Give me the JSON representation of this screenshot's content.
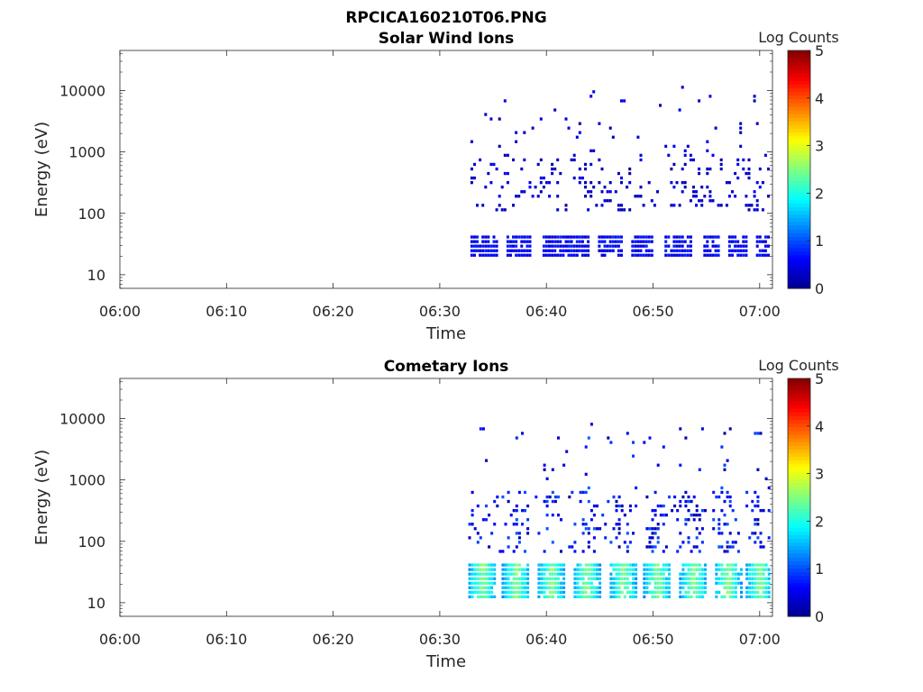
{
  "figure_title": "RPCICA160210T06.PNG",
  "colormap": [
    "#00008f",
    "#0000ff",
    "#0080ff",
    "#00ffff",
    "#80ff80",
    "#ffff00",
    "#ff8000",
    "#ff0000",
    "#800000"
  ],
  "chart_data": [
    {
      "type": "heatmap",
      "title": "Solar Wind Ions",
      "xlabel": "Time",
      "ylabel": "Energy (eV)",
      "x_tick_labels": [
        "06:00",
        "06:10",
        "06:20",
        "06:30",
        "06:40",
        "06:50",
        "07:00"
      ],
      "y_tick_labels": [
        "10",
        "100",
        "1000",
        "10000"
      ],
      "xlim_minutes": [
        0,
        61.2
      ],
      "ylim_eV": [
        6,
        45000
      ],
      "y_scale": "log",
      "colorbar": {
        "label": "Log Counts",
        "ticks": [
          "0",
          "1",
          "2",
          "3",
          "4",
          "5"
        ],
        "range": [
          0,
          5
        ]
      },
      "data_start_minute": 33,
      "data_end_minute": 61,
      "dominant_band_eV": [
        18,
        45
      ],
      "dominant_band_log_counts": 0.4,
      "scattered_energy_range_eV": [
        100,
        12000
      ],
      "gaps_minutes": [
        35.8,
        39.1,
        44.5,
        47.5,
        50.6,
        54.2,
        56.6,
        59.2
      ]
    },
    {
      "type": "heatmap",
      "title": "Cometary Ions",
      "xlabel": "Time",
      "ylabel": "Energy (eV)",
      "x_tick_labels": [
        "06:00",
        "06:10",
        "06:20",
        "06:30",
        "06:40",
        "06:50",
        "07:00"
      ],
      "y_tick_labels": [
        "10",
        "100",
        "1000",
        "10000"
      ],
      "xlim_minutes": [
        0,
        61.2
      ],
      "ylim_eV": [
        6,
        45000
      ],
      "y_scale": "log",
      "colorbar": {
        "label": "Log Counts",
        "ticks": [
          "0",
          "1",
          "2",
          "3",
          "4",
          "5"
        ],
        "range": [
          0,
          5
        ]
      },
      "data_start_minute": 32.8,
      "data_end_minute": 61,
      "dominant_band_eV": [
        12,
        45
      ],
      "dominant_band_log_counts": 2.0,
      "scattered_energy_range_eV": [
        60,
        9000
      ],
      "pulse_centers_minutes": [
        34,
        37.2,
        40.5,
        43.8,
        47.2,
        50.4,
        53.8,
        57.0,
        60.0
      ]
    }
  ]
}
